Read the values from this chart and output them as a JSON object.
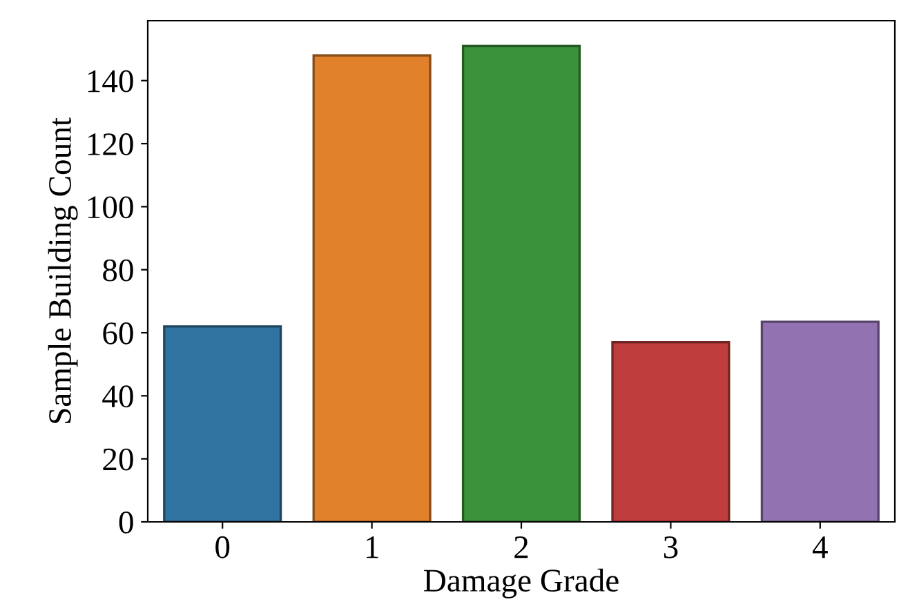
{
  "chart_data": {
    "type": "bar",
    "xlabel": "Damage Grade",
    "ylabel": "Sample Building Count",
    "categories": [
      "0",
      "1",
      "2",
      "3",
      "4"
    ],
    "values": [
      62,
      148,
      151,
      57,
      63.5
    ],
    "colors": [
      "#3274a1",
      "#e1812c",
      "#3a923a",
      "#c03d3e",
      "#9372b2"
    ],
    "ylim": [
      0,
      159
    ],
    "yticks": [
      0,
      20,
      40,
      60,
      80,
      100,
      120,
      140
    ],
    "grid": false
  }
}
